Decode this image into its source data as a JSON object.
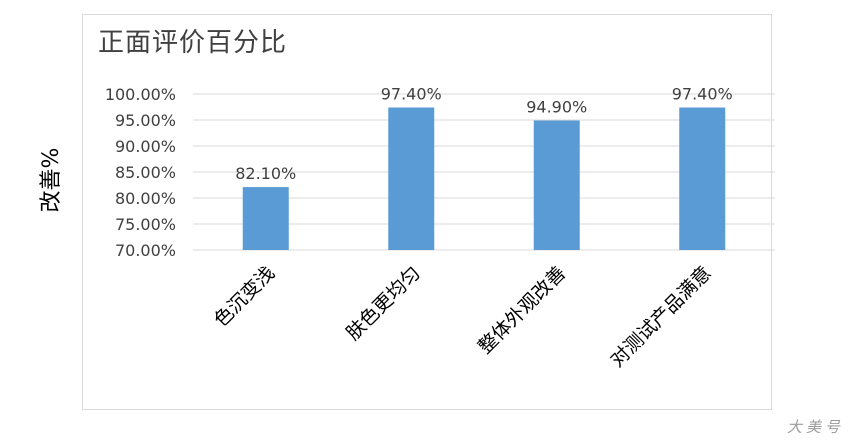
{
  "chart_data": {
    "type": "bar",
    "title": "正面评价百分比",
    "xlabel": "",
    "ylabel": "改善%",
    "categories": [
      "色沉变浅",
      "肤色更均匀",
      "整体外观改善",
      "对测试产品满意"
    ],
    "values": [
      82.1,
      97.4,
      94.9,
      97.4
    ],
    "data_labels": [
      "82.10%",
      "97.40%",
      "94.90%",
      "97.40%"
    ],
    "ylim": [
      70,
      100
    ],
    "ytick_values": [
      70,
      75,
      80,
      85,
      90,
      95,
      100
    ],
    "ytick_labels": [
      "70.00%",
      "75.00%",
      "80.00%",
      "85.00%",
      "90.00%",
      "95.00%",
      "100.00%"
    ],
    "grid": true,
    "legend": "none",
    "bar_color": "#5b9bd5"
  },
  "watermark": "大美号"
}
